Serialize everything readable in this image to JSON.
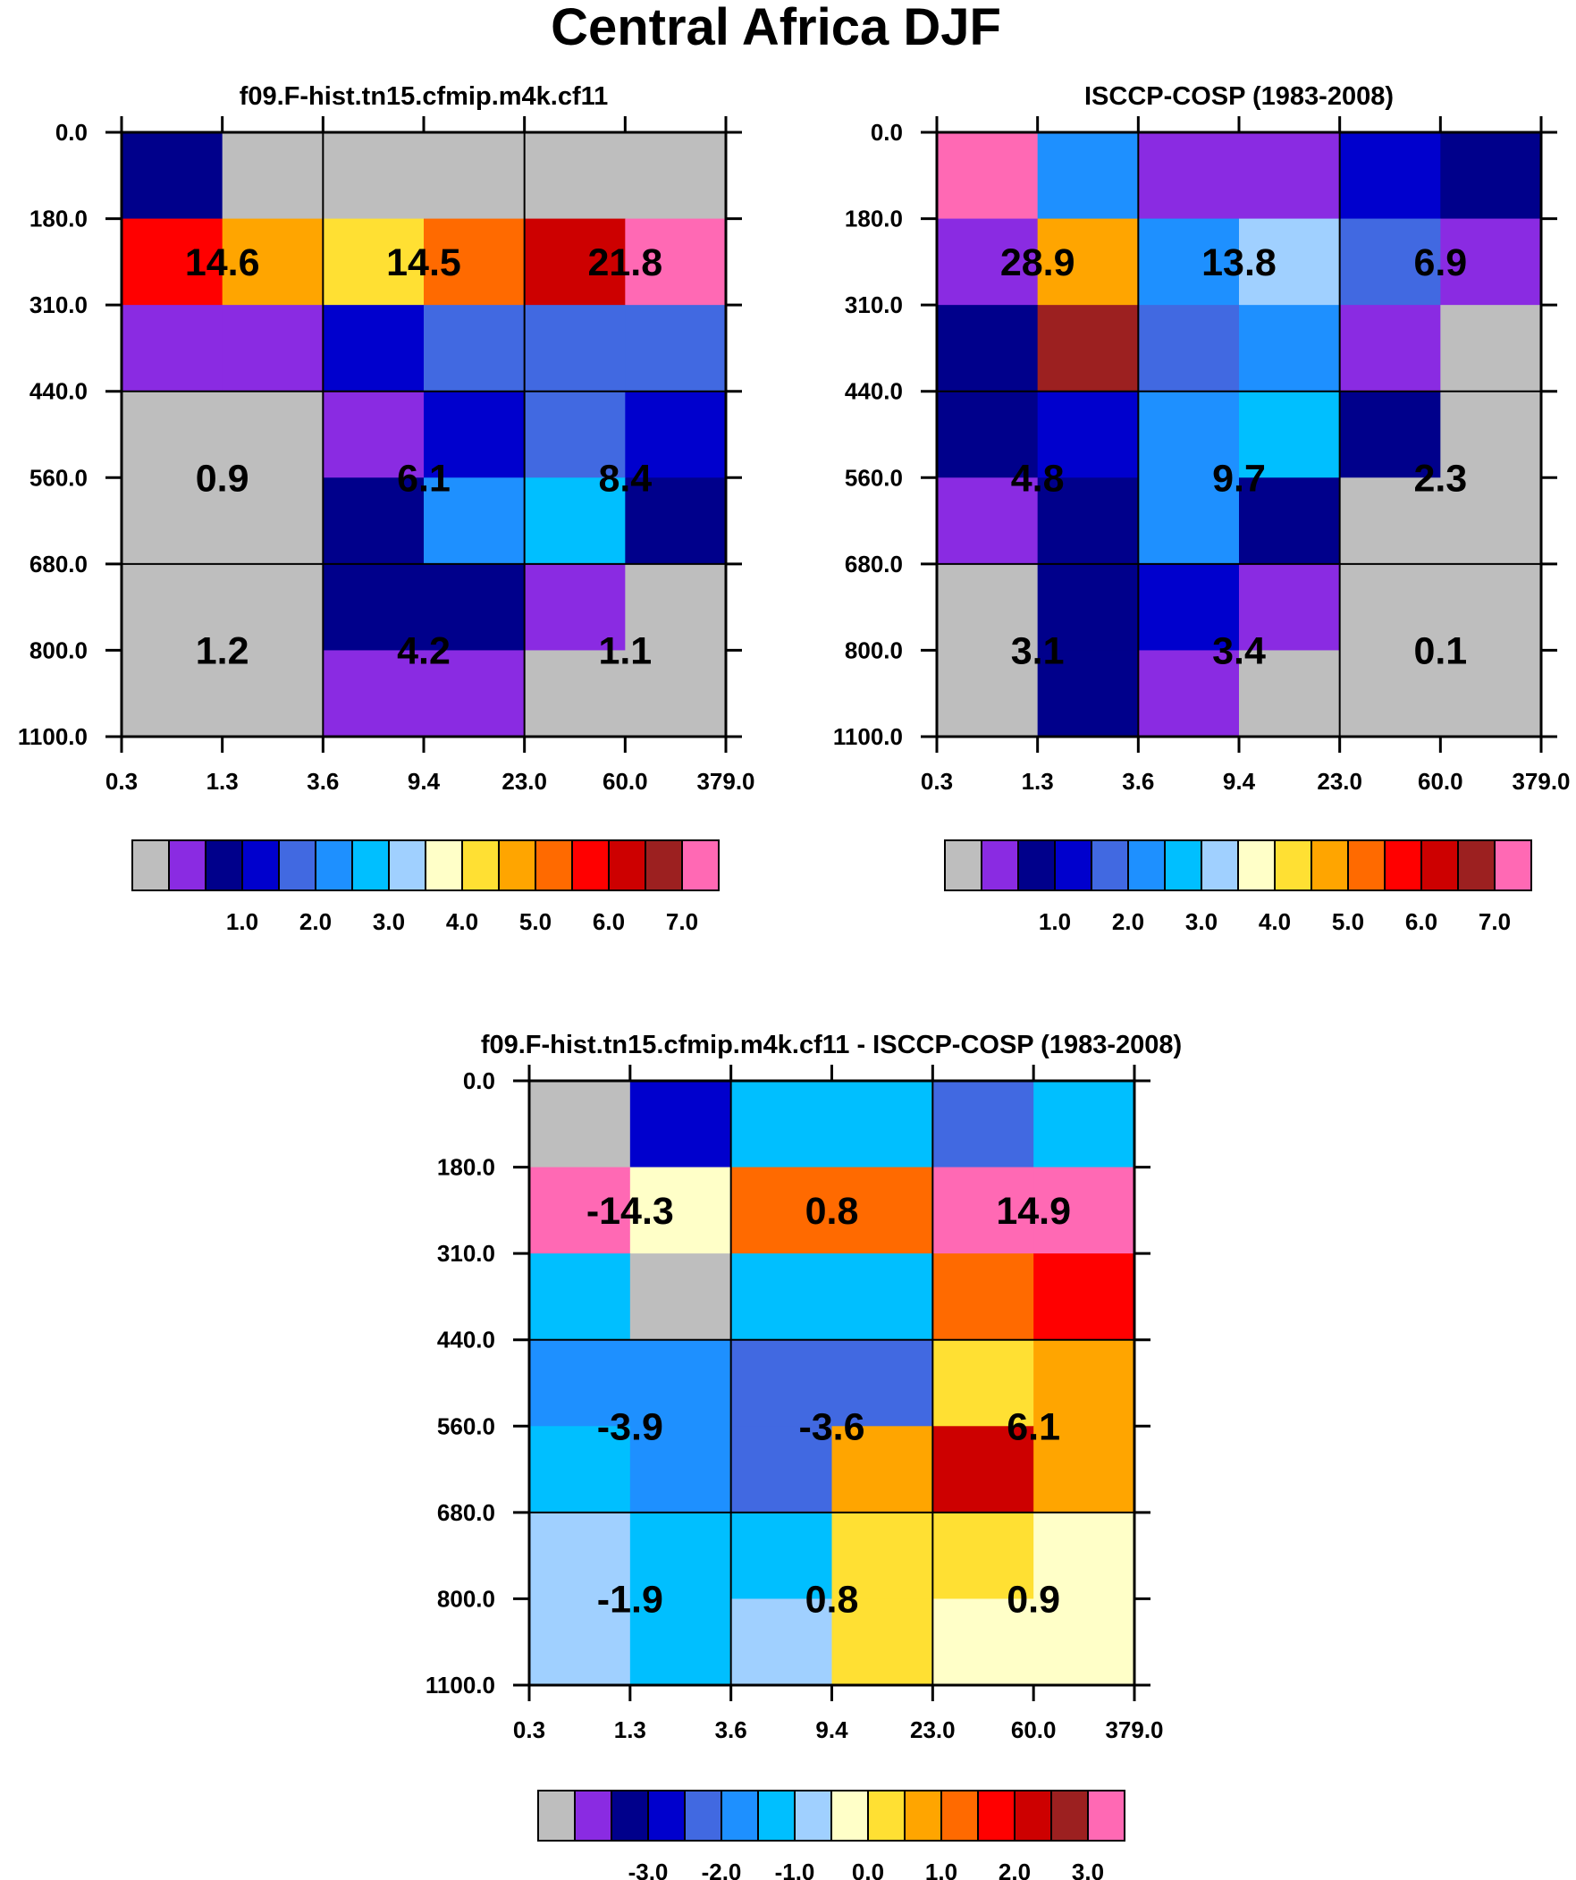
{
  "title": "Central Africa DJF",
  "chart_data": [
    {
      "type": "heatmap",
      "title": "f09.F-hist.tn15.cfmip.m4k.cf11",
      "x_ticks": [
        "0.3",
        "1.3",
        "3.6",
        "9.4",
        "23.0",
        "60.0",
        "379.0"
      ],
      "y_ticks": [
        "0.0",
        "180.0",
        "310.0",
        "440.0",
        "560.0",
        "680.0",
        "800.0",
        "1100.0"
      ],
      "cell_colors": [
        [
          "#00008B",
          "#BEBEBE",
          "#BEBEBE",
          "#BEBEBE",
          "#BEBEBE",
          "#BEBEBE"
        ],
        [
          "#FF0000",
          "#FFA500",
          "#FFE033",
          "#FF6A00",
          "#CD0000",
          "#FF69B4"
        ],
        [
          "#8A2BE2",
          "#8A2BE2",
          "#0000CD",
          "#4169E1",
          "#4169E1",
          "#4169E1"
        ],
        [
          "#BEBEBE",
          "#BEBEBE",
          "#8A2BE2",
          "#0000CD",
          "#4169E1",
          "#0000CD"
        ],
        [
          "#BEBEBE",
          "#BEBEBE",
          "#00008B",
          "#1E90FF",
          "#00BFFF",
          "#00008B"
        ],
        [
          "#BEBEBE",
          "#BEBEBE",
          "#00008B",
          "#00008B",
          "#8A2BE2",
          "#BEBEBE"
        ],
        [
          "#BEBEBE",
          "#BEBEBE",
          "#8A2BE2",
          "#8A2BE2",
          "#BEBEBE",
          "#BEBEBE"
        ]
      ],
      "group_values": [
        [
          "14.6",
          "14.5",
          "21.8"
        ],
        [
          "0.9",
          "6.1",
          "8.4"
        ],
        [
          "1.2",
          "4.2",
          "1.1"
        ]
      ],
      "colorbar": {
        "colors": [
          "#BEBEBE",
          "#8A2BE2",
          "#00008B",
          "#0000CD",
          "#4169E1",
          "#1E90FF",
          "#00BFFF",
          "#A0D0FF",
          "#FFFFC8",
          "#FFE033",
          "#FFA500",
          "#FF6A00",
          "#FF0000",
          "#CD0000",
          "#9C2020",
          "#FF69B4"
        ],
        "labels": [
          "1.0",
          "2.0",
          "3.0",
          "4.0",
          "5.0",
          "6.0",
          "7.0"
        ]
      }
    },
    {
      "type": "heatmap",
      "title": "ISCCP-COSP (1983-2008)",
      "x_ticks": [
        "0.3",
        "1.3",
        "3.6",
        "9.4",
        "23.0",
        "60.0",
        "379.0"
      ],
      "y_ticks": [
        "0.0",
        "180.0",
        "310.0",
        "440.0",
        "560.0",
        "680.0",
        "800.0",
        "1100.0"
      ],
      "cell_colors": [
        [
          "#FF69B4",
          "#1E90FF",
          "#8A2BE2",
          "#8A2BE2",
          "#0000CD",
          "#00008B"
        ],
        [
          "#8A2BE2",
          "#FFA500",
          "#1E90FF",
          "#A0D0FF",
          "#4169E1",
          "#8A2BE2"
        ],
        [
          "#00008B",
          "#9C2020",
          "#4169E1",
          "#1E90FF",
          "#8A2BE2",
          "#BEBEBE"
        ],
        [
          "#00008B",
          "#0000CD",
          "#1E90FF",
          "#00BFFF",
          "#00008B",
          "#BEBEBE"
        ],
        [
          "#8A2BE2",
          "#00008B",
          "#1E90FF",
          "#00008B",
          "#BEBEBE",
          "#BEBEBE"
        ],
        [
          "#BEBEBE",
          "#00008B",
          "#0000CD",
          "#8A2BE2",
          "#BEBEBE",
          "#BEBEBE"
        ],
        [
          "#BEBEBE",
          "#00008B",
          "#8A2BE2",
          "#BEBEBE",
          "#BEBEBE",
          "#BEBEBE"
        ]
      ],
      "group_values": [
        [
          "28.9",
          "13.8",
          "6.9"
        ],
        [
          "4.8",
          "9.7",
          "2.3"
        ],
        [
          "3.1",
          "3.4",
          "0.1"
        ]
      ],
      "colorbar": {
        "colors": [
          "#BEBEBE",
          "#8A2BE2",
          "#00008B",
          "#0000CD",
          "#4169E1",
          "#1E90FF",
          "#00BFFF",
          "#A0D0FF",
          "#FFFFC8",
          "#FFE033",
          "#FFA500",
          "#FF6A00",
          "#FF0000",
          "#CD0000",
          "#9C2020",
          "#FF69B4"
        ],
        "labels": [
          "1.0",
          "2.0",
          "3.0",
          "4.0",
          "5.0",
          "6.0",
          "7.0"
        ]
      }
    },
    {
      "type": "heatmap",
      "title": "f09.F-hist.tn15.cfmip.m4k.cf11 - ISCCP-COSP (1983-2008)",
      "x_ticks": [
        "0.3",
        "1.3",
        "3.6",
        "9.4",
        "23.0",
        "60.0",
        "379.0"
      ],
      "y_ticks": [
        "0.0",
        "180.0",
        "310.0",
        "440.0",
        "560.0",
        "680.0",
        "800.0",
        "1100.0"
      ],
      "cell_colors": [
        [
          "#BEBEBE",
          "#0000CD",
          "#00BFFF",
          "#00BFFF",
          "#4169E1",
          "#00BFFF"
        ],
        [
          "#FF69B4",
          "#FFFFC8",
          "#FF6A00",
          "#FF6A00",
          "#FF69B4",
          "#FF69B4"
        ],
        [
          "#00BFFF",
          "#BEBEBE",
          "#00BFFF",
          "#00BFFF",
          "#FF6A00",
          "#FF0000"
        ],
        [
          "#1E90FF",
          "#1E90FF",
          "#4169E1",
          "#4169E1",
          "#FFE033",
          "#FFA500"
        ],
        [
          "#00BFFF",
          "#1E90FF",
          "#4169E1",
          "#FFA500",
          "#CD0000",
          "#FFA500"
        ],
        [
          "#A0D0FF",
          "#00BFFF",
          "#00BFFF",
          "#FFE033",
          "#FFE033",
          "#FFFFC8"
        ],
        [
          "#A0D0FF",
          "#00BFFF",
          "#A0D0FF",
          "#FFE033",
          "#FFFFC8",
          "#FFFFC8"
        ]
      ],
      "group_values": [
        [
          "-14.3",
          "0.8",
          "14.9"
        ],
        [
          "-3.9",
          "-3.6",
          "6.1"
        ],
        [
          "-1.9",
          "0.8",
          "0.9"
        ]
      ],
      "colorbar": {
        "colors": [
          "#BEBEBE",
          "#8A2BE2",
          "#00008B",
          "#0000CD",
          "#4169E1",
          "#1E90FF",
          "#00BFFF",
          "#A0D0FF",
          "#FFFFC8",
          "#FFE033",
          "#FFA500",
          "#FF6A00",
          "#FF0000",
          "#CD0000",
          "#9C2020",
          "#FF69B4"
        ],
        "labels": [
          "-3.0",
          "-2.0",
          "-1.0",
          "0.0",
          "1.0",
          "2.0",
          "3.0"
        ]
      }
    }
  ]
}
